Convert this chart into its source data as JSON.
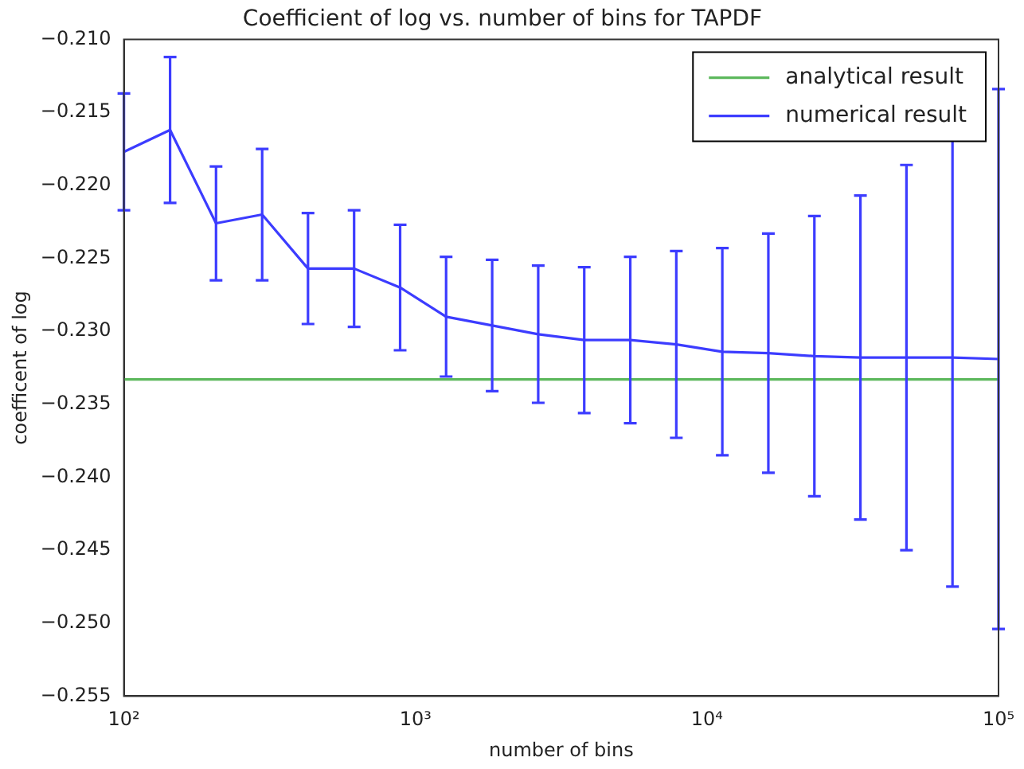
{
  "chart_data": {
    "type": "line",
    "title": "Coefficient of log vs. number of bins for TAPDF",
    "xlabel": "number of bins",
    "ylabel": "coefficent of log",
    "log": "x",
    "grid": false,
    "legend": "top right",
    "marker": "none",
    "line_style": "solid",
    "xlim": [
      100,
      100000
    ],
    "xticks": [
      {
        "value": 100,
        "label": "10²"
      },
      {
        "value": 1000,
        "label": "10³"
      },
      {
        "value": 10000,
        "label": "10⁴"
      },
      {
        "value": 100000,
        "label": "10⁵"
      }
    ],
    "ylim": [
      -0.255,
      -0.21
    ],
    "yticks": [
      {
        "value": -0.255,
        "label": "−0.255"
      },
      {
        "value": -0.25,
        "label": "−0.250"
      },
      {
        "value": -0.245,
        "label": "−0.245"
      },
      {
        "value": -0.24,
        "label": "−0.240"
      },
      {
        "value": -0.235,
        "label": "−0.235"
      },
      {
        "value": -0.23,
        "label": "−0.230"
      },
      {
        "value": -0.225,
        "label": "−0.225"
      },
      {
        "value": -0.22,
        "label": "−0.220"
      },
      {
        "value": -0.215,
        "label": "−0.215"
      },
      {
        "value": -0.21,
        "label": "−0.210"
      }
    ],
    "series": [
      {
        "name": "analytical result",
        "color": "#5cb85c",
        "x": [
          100,
          100000
        ],
        "values": [
          -0.2333,
          -0.2333
        ]
      },
      {
        "name": "numerical result",
        "color": "#3c3cff",
        "x": [
          100,
          144,
          207,
          298,
          428,
          616,
          886,
          1274,
          1833,
          2637,
          3793,
          5456,
          7848,
          11288,
          16238,
          23357,
          33598,
          48329,
          69519,
          100000
        ],
        "values": [
          -0.2177,
          -0.2162,
          -0.2226,
          -0.222,
          -0.2257,
          -0.2257,
          -0.227,
          -0.229,
          -0.2296,
          -0.2302,
          -0.2306,
          -0.2306,
          -0.2309,
          -0.2314,
          -0.2315,
          -0.2317,
          -0.2318,
          -0.2318,
          -0.2318,
          -0.2319
        ],
        "errors": [
          0.004,
          0.005,
          0.0039,
          0.0045,
          0.0038,
          0.004,
          0.0043,
          0.0041,
          0.0045,
          0.0047,
          0.005,
          0.0057,
          0.0064,
          0.0071,
          0.0082,
          0.0096,
          0.0111,
          0.0132,
          0.0157,
          0.0185
        ]
      }
    ]
  }
}
